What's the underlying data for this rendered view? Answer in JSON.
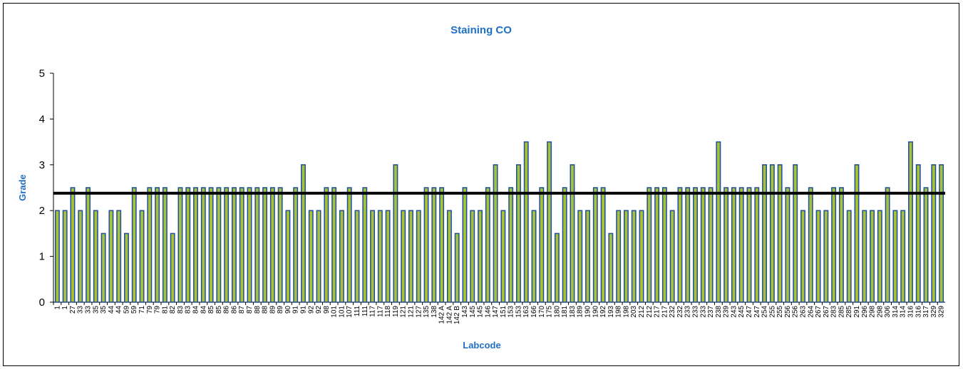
{
  "chart_data": {
    "type": "bar",
    "title": "Staining CO",
    "x_label": "Labcode",
    "y_label": "Grade",
    "categories": [
      "1",
      "1",
      "27",
      "33",
      "33",
      "35",
      "35",
      "44",
      "44",
      "59",
      "59",
      "71",
      "79",
      "79",
      "81",
      "82",
      "83",
      "83",
      "84",
      "84",
      "85",
      "85",
      "86",
      "86",
      "87",
      "87",
      "88",
      "88",
      "89",
      "89",
      "90",
      "91",
      "91",
      "92",
      "92",
      "98",
      "101",
      "101",
      "107",
      "111",
      "111",
      "117",
      "117",
      "118",
      "119",
      "121",
      "121",
      "127",
      "135",
      "138",
      "142 A",
      "142 A",
      "142 B",
      "143",
      "145",
      "145",
      "146",
      "147",
      "151",
      "153",
      "153",
      "163",
      "166",
      "170",
      "175",
      "180",
      "181",
      "183",
      "189",
      "190",
      "190",
      "192",
      "193",
      "198",
      "198",
      "203",
      "212",
      "212",
      "217",
      "217",
      "232",
      "232",
      "233",
      "233",
      "233",
      "237",
      "238",
      "239",
      "243",
      "245",
      "247",
      "247",
      "254",
      "255",
      "255",
      "256",
      "256",
      "263",
      "264",
      "267",
      "267",
      "283",
      "285",
      "285",
      "291",
      "296",
      "298",
      "298",
      "306",
      "314",
      "314",
      "316",
      "316",
      "317",
      "329",
      "329"
    ],
    "values": [
      2,
      2,
      2.5,
      2,
      2.5,
      2,
      1.5,
      2,
      2,
      1.5,
      2.5,
      2,
      2.5,
      2.5,
      2.5,
      1.5,
      2.5,
      2.5,
      2.5,
      2.5,
      2.5,
      2.5,
      2.5,
      2.5,
      2.5,
      2.5,
      2.5,
      2.5,
      2.5,
      2.5,
      2,
      2.5,
      3,
      2,
      2,
      2.5,
      2.5,
      2,
      2.5,
      2,
      2.5,
      2,
      2,
      2,
      3,
      2,
      2,
      2,
      2.5,
      2.5,
      2.5,
      2,
      1.5,
      2.5,
      2,
      2,
      2.5,
      3,
      2,
      2.5,
      3,
      3.5,
      2,
      2.5,
      3.5,
      1.5,
      2.5,
      3,
      2,
      2,
      2.5,
      2.5,
      1.5,
      2,
      2,
      2,
      2,
      2.5,
      2.5,
      2.5,
      2,
      2.5,
      2.5,
      2.5,
      2.5,
      2.5,
      3.5,
      2.5,
      2.5,
      2.5,
      2.5,
      2.5,
      3,
      3,
      3,
      2.5,
      3,
      2,
      2.5,
      2,
      2,
      2.5,
      2.5,
      2,
      3,
      2,
      2,
      2,
      2.5,
      2,
      2,
      3.5,
      3,
      2.5,
      3,
      3
    ],
    "color": "#a7c23a",
    "edge_color": "#1f4e9c",
    "reference_line": 2.38,
    "reference_color": "#000000",
    "ylim": [
      0,
      5
    ],
    "yticks": [
      0,
      1,
      2,
      3,
      4,
      5
    ]
  }
}
